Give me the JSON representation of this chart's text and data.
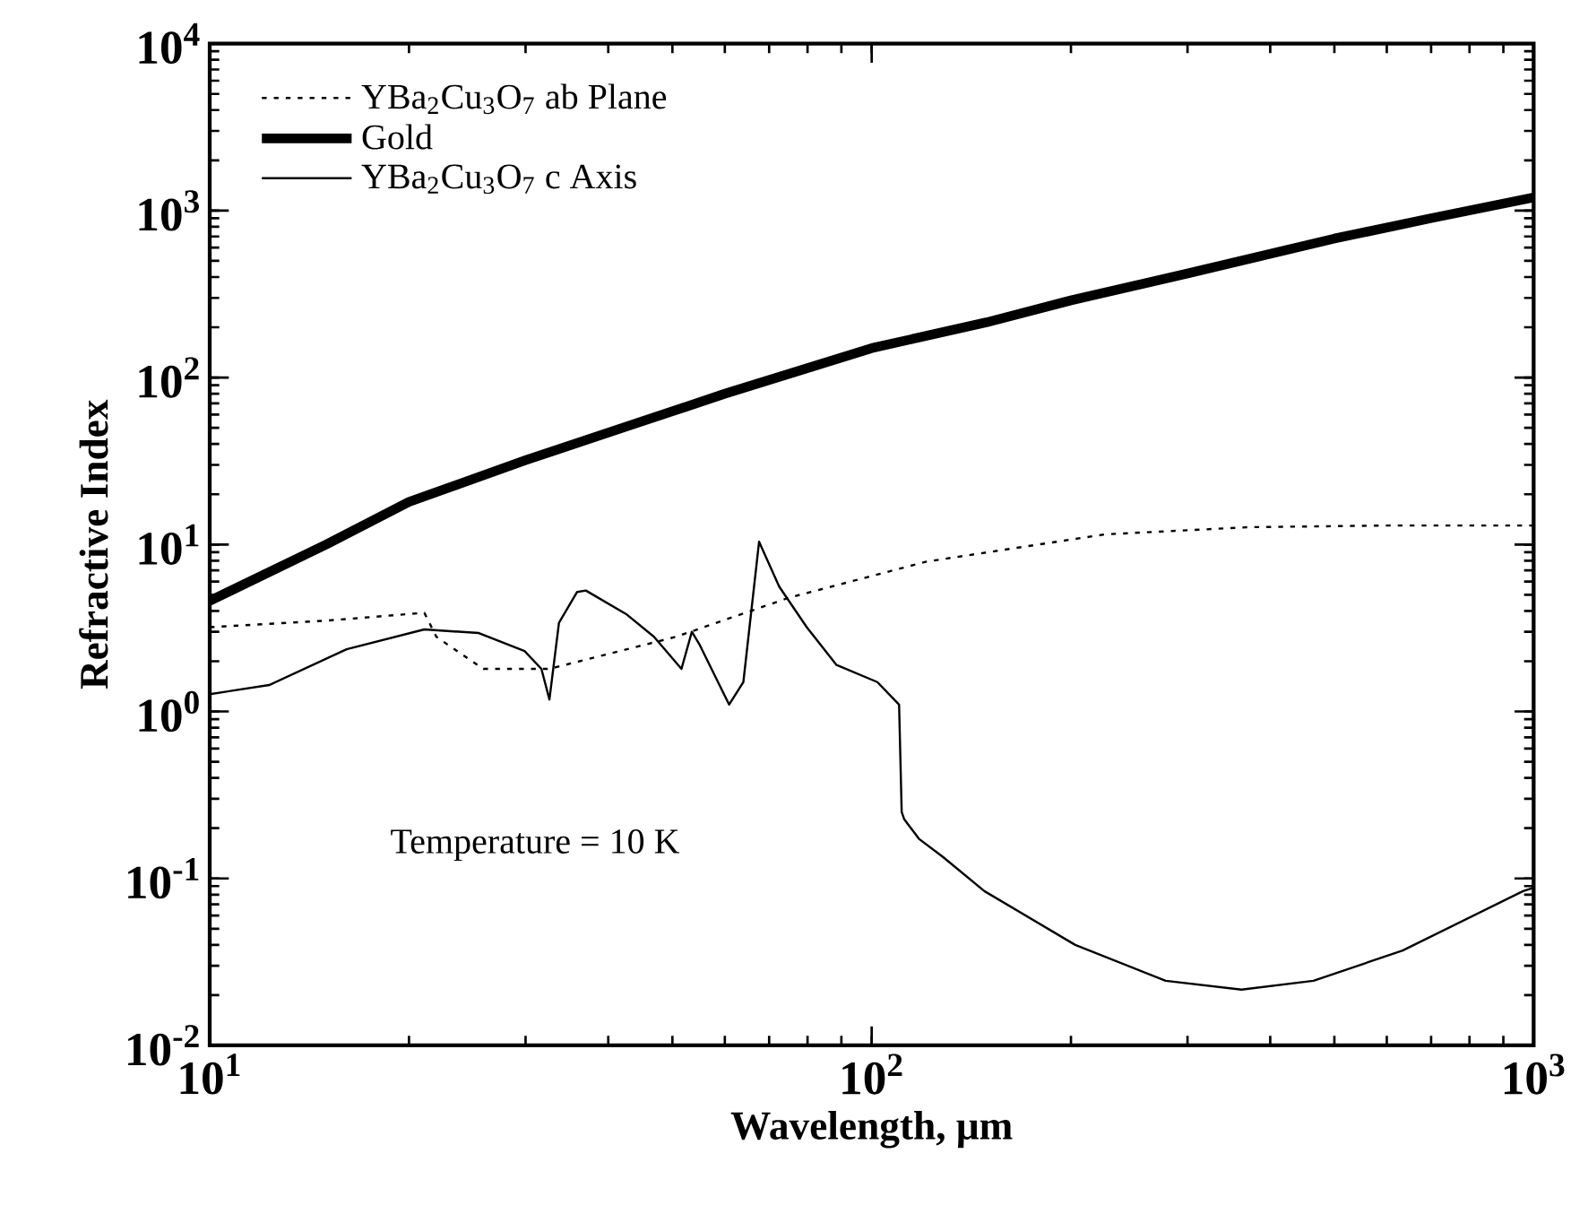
{
  "chart_data": {
    "type": "line",
    "xlabel": "Wavelength,  μm",
    "ylabel": "Refractive  Index",
    "log": "xy",
    "xlim": [
      10,
      1000
    ],
    "ylim": [
      0.01,
      10000
    ],
    "xticks": [
      {
        "value": 10,
        "label": "10$^{1}$"
      },
      {
        "value": 100,
        "label": "10$^{2}$"
      },
      {
        "value": 1000,
        "label": "10$^{3}$"
      }
    ],
    "yticks": [
      {
        "value": 0.01,
        "label": "10$^{-2}$"
      },
      {
        "value": 0.1,
        "label": "10$^{-1}$"
      },
      {
        "value": 1,
        "label": "10$^{0}$"
      },
      {
        "value": 10,
        "label": "10$^{1}$"
      },
      {
        "value": 100,
        "label": "10$^{2}$"
      },
      {
        "value": 1000,
        "label": "10$^{3}$"
      },
      {
        "value": 10000,
        "label": "10$^{4}$"
      }
    ],
    "legend": "top left",
    "grid": false,
    "marker": "none",
    "annotations": [
      "Temperature = 10 K"
    ],
    "series": [
      {
        "name": "YBa$_{2}$Cu$_{3}$O$_{7}$ ab Plane",
        "color": "#000000",
        "line_style": "dotted",
        "x": [
          10,
          15,
          21.1,
          22,
          25.9,
          32.6,
          42.7,
          50.6,
          75,
          121,
          225,
          371,
          600,
          1000
        ],
        "values": [
          3.2,
          3.5,
          3.9,
          2.8,
          1.8,
          1.8,
          2.36,
          2.8,
          4.8,
          7.9,
          11.5,
          12.7,
          13,
          13
        ]
      },
      {
        "name": "Gold",
        "color": "#000000",
        "line_style": "solid",
        "x": [
          10,
          15,
          20,
          30,
          42.7,
          60,
          100,
          149,
          200,
          300,
          500,
          700,
          1000
        ],
        "values": [
          4.6,
          10,
          18,
          32,
          51,
          80,
          150,
          214,
          290,
          420,
          680,
          900,
          1200
        ]
      },
      {
        "name": "YBa$_{2}$Cu$_{3}$O$_{7}$ c Axis",
        "color": "#000000",
        "line_style": "solid",
        "x": [
          10,
          12.3,
          16.1,
          21.1,
          25.5,
          29.9,
          31.7,
          32.6,
          33.7,
          35.9,
          37,
          42.7,
          46.9,
          51.6,
          53.5,
          55,
          60.9,
          64,
          67.6,
          72.5,
          79.8,
          88.5,
          102,
          110,
          111,
          112,
          118,
          128,
          148,
          203,
          278,
          362,
          465,
          634,
          964,
          1000
        ],
        "values": [
          1.27,
          1.44,
          2.36,
          3.1,
          2.95,
          2.3,
          1.8,
          1.18,
          3.4,
          5.2,
          5.3,
          3.8,
          2.8,
          1.8,
          3.0,
          2.5,
          1.1,
          1.5,
          10.4,
          5.6,
          3.2,
          1.9,
          1.5,
          1.1,
          0.25,
          0.226,
          0.172,
          0.135,
          0.084,
          0.04,
          0.0244,
          0.0216,
          0.0244,
          0.037,
          0.084,
          0.088
        ]
      }
    ]
  }
}
